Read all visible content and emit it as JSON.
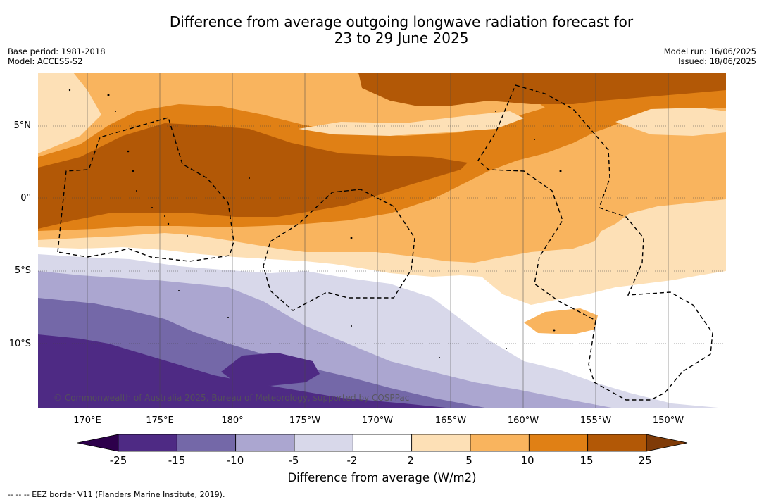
{
  "title": {
    "line1": "Difference from average outgoing longwave radiation forecast for",
    "line2": "23 to 29 June 2025"
  },
  "meta_left": {
    "base_period": "Base period: 1981-2018",
    "model": "Model: ACCESS-S2"
  },
  "meta_right": {
    "model_run": "Model run: 16/06/2025",
    "issued": "Issued: 18/06/2025"
  },
  "map": {
    "lat_labels": [
      "5°N",
      "0°",
      "5°S",
      "10°S"
    ],
    "lon_labels": [
      "170°E",
      "175°E",
      "180°",
      "175°W",
      "170°W",
      "165°W",
      "160°W",
      "155°W",
      "150°W"
    ],
    "credit": "© Commonwealth of Australia 2025, Bureau of Meteorology, supported by COSPPac",
    "eez_style": "dashed black line"
  },
  "colorbar": {
    "ticks": [
      "-25",
      "-15",
      "-10",
      "-5",
      "-2",
      "2",
      "5",
      "10",
      "15",
      "25"
    ],
    "colors": [
      "#4e2a84",
      "#7468a8",
      "#aba6d0",
      "#d8d8ea",
      "#ffffff",
      "#fde0b6",
      "#f9b45e",
      "#e08015",
      "#b25806"
    ],
    "under_color": "#2d004b",
    "over_color": "#7f3b08",
    "label": "Difference from average (W/m2)"
  },
  "footnote": "--  --  -- EEZ border V11 (Flanders Marine Institute, 2019)."
}
